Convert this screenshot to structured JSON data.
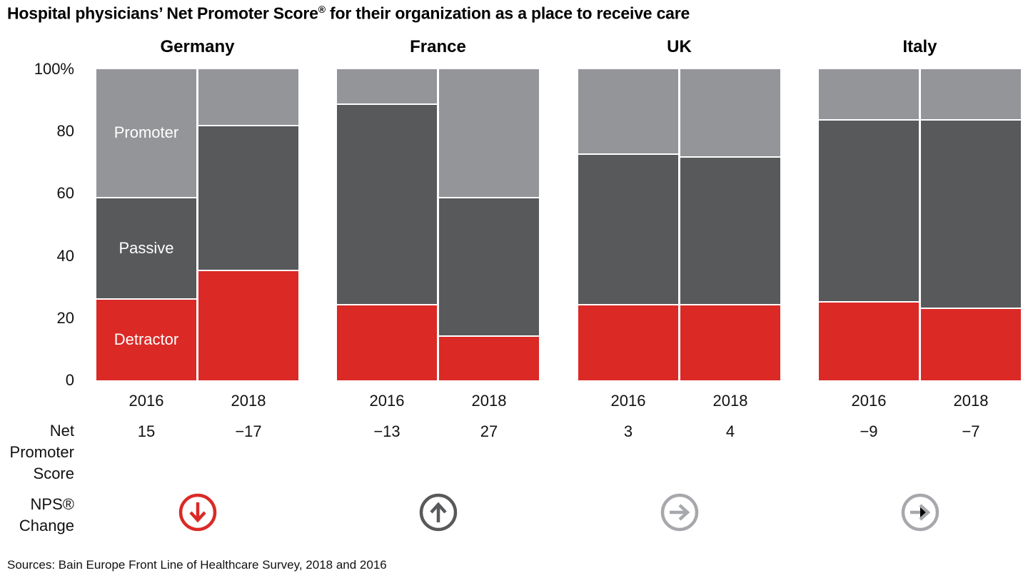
{
  "title": {
    "main": "Hospital physicians’ Net Promoter Score",
    "sup": "®",
    "rest": " for their organization as a place to receive care"
  },
  "source": "Sources: Bain Europe Front Line of Healthcare Survey, 2018 and 2016",
  "row_labels": {
    "nps": "Net\nPromoter\nScore",
    "change": "NPS®\nChange"
  },
  "y_axis": {
    "ticks": [
      "100%",
      "80",
      "60",
      "40",
      "20",
      "0"
    ]
  },
  "legend": {
    "promoter": "Promoter",
    "passive": "Passive",
    "detractor": "Detractor"
  },
  "colors": {
    "promoter": "#939598",
    "passive": "#58595B",
    "detractor": "#DB2926",
    "arrow_down": "#DB2926",
    "arrow_up": "#58595B",
    "arrow_flat": "#A6A8AB"
  },
  "chart_data": {
    "type": "bar",
    "subtype": "100pct-stacked-grouped",
    "title": "Hospital physicians’ Net Promoter Score® for their organization as a place to receive care",
    "ylabel": "%",
    "ylim": [
      0,
      100
    ],
    "grid": false,
    "segment_order_top_to_bottom": [
      "promoter",
      "passive",
      "detractor"
    ],
    "countries": [
      {
        "name": "Germany",
        "change": {
          "direction": "down",
          "color": "#DB2926"
        },
        "bars": [
          {
            "year": "2016",
            "nps": "15",
            "promoter": 41,
            "passive": 33,
            "detractor": 26
          },
          {
            "year": "2018",
            "nps": "−17",
            "promoter": 18,
            "passive": 47,
            "detractor": 35
          }
        ]
      },
      {
        "name": "France",
        "change": {
          "direction": "up",
          "color": "#58595B"
        },
        "bars": [
          {
            "year": "2016",
            "nps": "−13",
            "promoter": 11,
            "passive": 65,
            "detractor": 24
          },
          {
            "year": "2018",
            "nps": "27",
            "promoter": 41,
            "passive": 45,
            "detractor": 14
          }
        ]
      },
      {
        "name": "UK",
        "change": {
          "direction": "right",
          "color": "#A6A8AB"
        },
        "bars": [
          {
            "year": "2016",
            "nps": "3",
            "promoter": 27,
            "passive": 49,
            "detractor": 24
          },
          {
            "year": "2018",
            "nps": "4",
            "promoter": 28,
            "passive": 48,
            "detractor": 24
          }
        ]
      },
      {
        "name": "Italy",
        "change": {
          "direction": "right",
          "color": "#A6A8AB"
        },
        "bars": [
          {
            "year": "2016",
            "nps": "−9",
            "promoter": 16,
            "passive": 59,
            "detractor": 25
          },
          {
            "year": "2018",
            "nps": "−7",
            "promoter": 16,
            "passive": 61,
            "detractor": 23
          }
        ]
      }
    ]
  }
}
